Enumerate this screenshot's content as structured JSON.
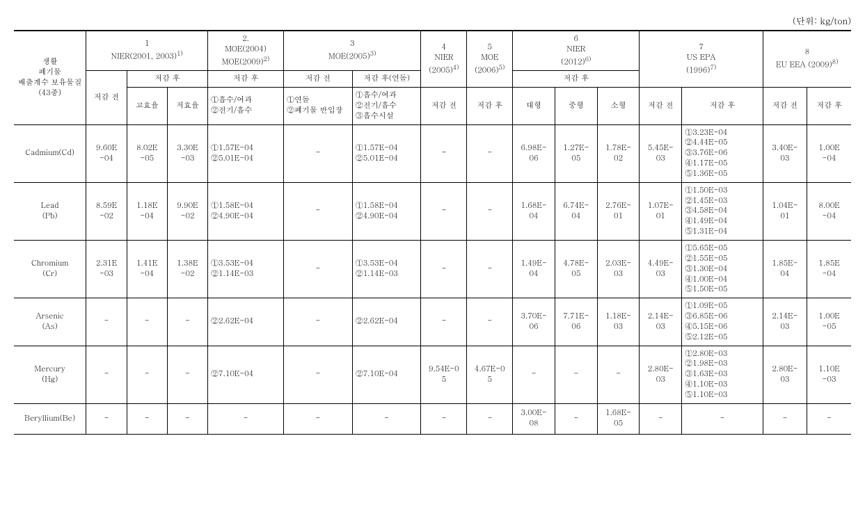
{
  "unit_label": "(단위: kg/ton)",
  "row_header": "생활\n폐기물\n배출계수 보유물질\n(43종)",
  "groups": {
    "g1": {
      "num": "1",
      "label": "NIER(2001, 2003)",
      "sup": "1)"
    },
    "g2": {
      "num": "2.",
      "label1": "MOE(2004)",
      "label2": "MOE(2009)",
      "sup": "2)"
    },
    "g3": {
      "num": "3",
      "label": "MOE(2005)",
      "sup": "3)"
    },
    "g4": {
      "num": "4",
      "label": "NIER",
      "yr": "(2005)",
      "sup": "4)"
    },
    "g5": {
      "num": "5",
      "label": "MOE",
      "yr": "(2006)",
      "sup": "5)"
    },
    "g6": {
      "num": "6",
      "label": "NIER",
      "yr": "(2012)",
      "sup": "6)"
    },
    "g7": {
      "num": "7",
      "label": "US EPA",
      "yr": "(1996)",
      "sup": "7)"
    },
    "g8": {
      "num": "8",
      "label": "EU EEA  (2009)",
      "sup": "8)"
    }
  },
  "sub": {
    "before": "저감 전",
    "after": "저감 후",
    "after_stack": "저감 후(연돌)",
    "high_eff": "고효율",
    "low_eff": "저효율",
    "g2_desc": "①흡수/여과\n②전기/흡수",
    "g3_before_desc": "①연돌\n②폐기물 반입장",
    "g3_after_desc": "①흡수/여과\n②전기/흡수\n③흡수시설",
    "large": "대형",
    "medium": "중형",
    "small": "소형"
  },
  "rows": [
    {
      "name": "Cadmium(Cd)",
      "c1": "9.60E\n-04",
      "c2": "8.02E\n-05",
      "c3": "3.30E\n-03",
      "c4": "①1.57E-04\n②5.01E-04",
      "c5": "-",
      "c6": "①1.57E-04\n②5.01E-04",
      "c7": "-",
      "c8": "-",
      "c9": "6.98E-\n06",
      "c10": "1.27E-\n05",
      "c11": "1.78E-\n02",
      "c12": "5.45E-\n03",
      "c13": "①3.23E-04\n②4.44E-05\n③3.76E-06\n④1.17E-05\n⑤1.36E-05",
      "c14": "3.40E-\n03",
      "c15": "1.00E\n-04"
    },
    {
      "name": "Lead\n(Pb)",
      "c1": "8.59E\n-02",
      "c2": "1.18E\n-04",
      "c3": "9.90E\n-02",
      "c4": "①1.58E-04\n②4.90E-04",
      "c5": "-",
      "c6": "①1.58E-04\n②4.90E-04",
      "c7": "-",
      "c8": "-",
      "c9": "1.68E-\n04",
      "c10": "6.74E-\n04",
      "c11": "2.76E-\n01",
      "c12": "1.07E-\n01",
      "c13": "①1.50E-03\n②1.45E-03\n③4.58E-04\n④1.49E-04\n⑤1.31E-04",
      "c14": "1.04E-\n01",
      "c15": "8.00E\n-04"
    },
    {
      "name": "Chromium\n(Cr)",
      "c1": "2.31E\n-03",
      "c2": "1.41E\n-04",
      "c3": "1.38E\n-02",
      "c4": "①3.53E-04\n②1.14E-03",
      "c5": "-",
      "c6": "①3.53E-04\n②1.14E-03",
      "c7": "-",
      "c8": "-",
      "c9": "1.49E-\n04",
      "c10": "4.78E-\n05",
      "c11": "2.03E-\n03",
      "c12": "4.49E-\n03",
      "c13": "①5.65E-05\n②1.55E-05\n③1.30E-04\n④1.00E-04\n⑤1.50E-05",
      "c14": "1.85E-\n04",
      "c15": "1.85E\n-04"
    },
    {
      "name": "Arsenic\n(As)",
      "c1": "-",
      "c2": "-",
      "c3": "-",
      "c4": "②2.62E-04",
      "c5": "-",
      "c6": "②2.62E-04",
      "c7": "-",
      "c8": "-",
      "c9": "3.70E-\n06",
      "c10": "7.71E-\n06",
      "c11": "1.18E-\n03",
      "c12": "2.14E-\n03",
      "c13": "①1.09E-05\n③6.85E-06\n④5.15E-06\n⑤2.12E-05",
      "c14": "2.14E-\n03",
      "c15": "1.00E\n-05"
    },
    {
      "name": "Mercury\n(Hg)",
      "c1": "-",
      "c2": "-",
      "c3": "-",
      "c4": "②7.10E-04",
      "c5": "-",
      "c6": "②7.10E-04",
      "c7": "9.54E-0\n5",
      "c8": "4.67E-0\n5",
      "c9": "-",
      "c10": "-",
      "c11": "-",
      "c12": "2.80E-\n03",
      "c13": "①2.80E-03\n②1.98E-03\n③1.63E-03\n④1.10E-03\n⑤1.10E-03",
      "c14": "2.80E-\n03",
      "c15": "1.10E\n-03"
    },
    {
      "name": "Beryllium(Be)",
      "c1": "-",
      "c2": "-",
      "c3": "-",
      "c4": "-",
      "c5": "-",
      "c6": "-",
      "c7": "-",
      "c8": "-",
      "c9": "3.00E-\n08",
      "c10": "-",
      "c11": "1.68E-\n05",
      "c12": "-",
      "c13": "-",
      "c14": "-",
      "c15": "-"
    }
  ]
}
